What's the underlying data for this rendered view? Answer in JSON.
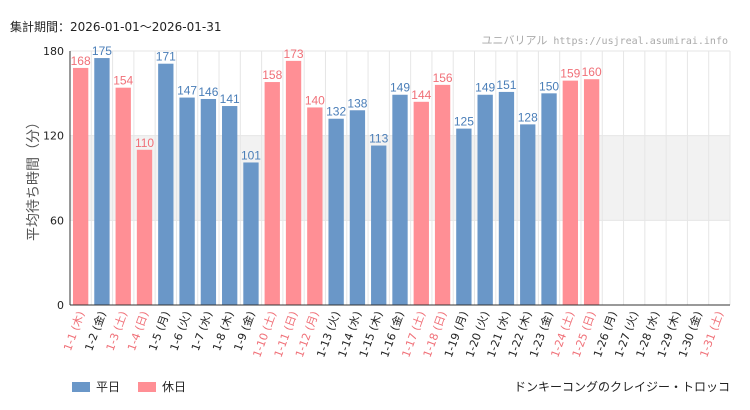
{
  "header": {
    "period_label": "集計期間：2026-01-01～2026-01-31",
    "site_name": "ユニバリアル",
    "site_url": "https://usjreal.asumirai.info"
  },
  "footer": {
    "attraction": "ドンキーコングのクレイジー・トロッコ"
  },
  "colors": {
    "weekday": "#6a97c8",
    "holiday": "#ff8f95",
    "weekday_text": "#4a7eb8",
    "holiday_text": "#f07078",
    "band": "#f2f2f2",
    "grid": "#e6e6e6"
  },
  "chart_data": {
    "type": "bar",
    "ylabel": "平均待ち時間（分）",
    "ylim": [
      0,
      180
    ],
    "yticks": [
      0,
      60,
      120,
      180
    ],
    "highlight_band": [
      60,
      120
    ],
    "categories": [
      "1-1 (木)",
      "1-2 (金)",
      "1-3 (土)",
      "1-4 (日)",
      "1-5 (月)",
      "1-6 (火)",
      "1-7 (水)",
      "1-8 (木)",
      "1-9 (金)",
      "1-10 (土)",
      "1-11 (日)",
      "1-12 (月)",
      "1-13 (火)",
      "1-14 (水)",
      "1-15 (木)",
      "1-16 (金)",
      "1-17 (土)",
      "1-18 (日)",
      "1-19 (月)",
      "1-20 (火)",
      "1-21 (水)",
      "1-22 (木)",
      "1-23 (金)",
      "1-24 (土)",
      "1-25 (日)",
      "1-26 (月)",
      "1-27 (火)",
      "1-28 (水)",
      "1-29 (木)",
      "1-30 (金)",
      "1-31 (土)"
    ],
    "day_types": [
      "holiday",
      "weekday",
      "holiday",
      "holiday",
      "weekday",
      "weekday",
      "weekday",
      "weekday",
      "weekday",
      "holiday",
      "holiday",
      "holiday",
      "weekday",
      "weekday",
      "weekday",
      "weekday",
      "holiday",
      "holiday",
      "weekday",
      "weekday",
      "weekday",
      "weekday",
      "weekday",
      "holiday",
      "holiday",
      "weekday",
      "weekday",
      "weekday",
      "weekday",
      "weekday",
      "holiday"
    ],
    "values": [
      168,
      175,
      154,
      110,
      171,
      147,
      146,
      141,
      101,
      158,
      173,
      140,
      132,
      138,
      113,
      149,
      144,
      156,
      125,
      149,
      151,
      128,
      150,
      159,
      160,
      null,
      null,
      null,
      null,
      null,
      null
    ],
    "legend": [
      {
        "key": "weekday",
        "label": "平日"
      },
      {
        "key": "holiday",
        "label": "休日"
      }
    ]
  }
}
